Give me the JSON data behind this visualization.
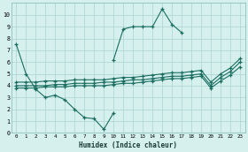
{
  "xlabel": "Humidex (Indice chaleur)",
  "bg_color": "#d6f0ee",
  "grid_color": "#b2d8d4",
  "line_color": "#1a6e60",
  "xlim": [
    -0.5,
    23.5
  ],
  "ylim": [
    0,
    11
  ],
  "xticks": [
    0,
    1,
    2,
    3,
    4,
    5,
    6,
    7,
    8,
    9,
    10,
    11,
    12,
    13,
    14,
    15,
    16,
    17,
    18,
    19,
    20,
    21,
    22,
    23
  ],
  "yticks": [
    0,
    1,
    2,
    3,
    4,
    5,
    6,
    7,
    8,
    9,
    10
  ],
  "series": [
    {
      "x": [
        0,
        1,
        2,
        3,
        4,
        5,
        6,
        7,
        8,
        9,
        10
      ],
      "y": [
        7.5,
        5.0,
        3.7,
        3.0,
        3.2,
        2.8,
        2.0,
        1.3,
        1.2,
        0.3,
        1.7
      ]
    },
    {
      "x": [
        10,
        11,
        12,
        13,
        14,
        15,
        16,
        17
      ],
      "y": [
        6.2,
        8.8,
        9.0,
        9.0,
        9.0,
        10.5,
        9.2,
        8.5
      ]
    },
    {
      "x": [
        0,
        1,
        2,
        3,
        4,
        5,
        6,
        7,
        8,
        9,
        10,
        11,
        12,
        13,
        14,
        15,
        16,
        17,
        18,
        19,
        20,
        21,
        22,
        23
      ],
      "y": [
        4.3,
        4.3,
        4.3,
        4.4,
        4.4,
        4.4,
        4.5,
        4.5,
        4.5,
        4.5,
        4.6,
        4.7,
        4.7,
        4.8,
        4.9,
        5.0,
        5.1,
        5.1,
        5.2,
        5.3,
        4.3,
        5.0,
        5.5,
        6.3
      ]
    },
    {
      "x": [
        0,
        1,
        2,
        3,
        4,
        5,
        6,
        7,
        8,
        9,
        10,
        11,
        12,
        13,
        14,
        15,
        16,
        17,
        18,
        19,
        20,
        21,
        22,
        23
      ],
      "y": [
        4.0,
        4.0,
        4.0,
        4.0,
        4.1,
        4.1,
        4.2,
        4.2,
        4.2,
        4.3,
        4.3,
        4.4,
        4.5,
        4.5,
        4.6,
        4.7,
        4.8,
        4.8,
        4.9,
        5.0,
        4.0,
        4.7,
        5.2,
        6.0
      ]
    },
    {
      "x": [
        0,
        1,
        2,
        3,
        4,
        5,
        6,
        7,
        8,
        9,
        10,
        11,
        12,
        13,
        14,
        15,
        16,
        17,
        18,
        19,
        20,
        21,
        22,
        23
      ],
      "y": [
        3.8,
        3.8,
        3.8,
        3.9,
        3.9,
        3.9,
        4.0,
        4.0,
        4.0,
        4.0,
        4.1,
        4.2,
        4.2,
        4.3,
        4.4,
        4.5,
        4.6,
        4.6,
        4.7,
        4.8,
        3.8,
        4.4,
        4.9,
        5.6
      ]
    }
  ]
}
